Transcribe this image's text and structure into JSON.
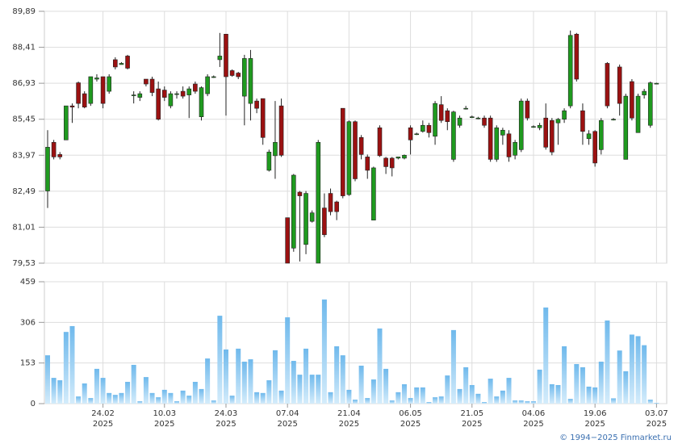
{
  "chart_data": [
    {
      "type": "candlestick",
      "up_color": "#1f9a1f",
      "down_color": "#9b1111",
      "grid": true,
      "ylim": [
        79.53,
        89.89
      ],
      "yticks": [
        {
          "value": 79.53,
          "label": "79,53"
        },
        {
          "value": 81.01,
          "label": "81,01"
        },
        {
          "value": 82.49,
          "label": "82,49"
        },
        {
          "value": 83.97,
          "label": "83,97"
        },
        {
          "value": 85.45,
          "label": "85,45"
        },
        {
          "value": 86.93,
          "label": "86,93"
        },
        {
          "value": 88.41,
          "label": "88,41"
        },
        {
          "value": 89.89,
          "label": "89,89"
        }
      ],
      "open": [
        82.5,
        84.5,
        84.0,
        84.6,
        86.0,
        86.95,
        86.5,
        86.1,
        87.1,
        87.2,
        86.6,
        87.9,
        87.7,
        88.05,
        86.45,
        86.35,
        87.1,
        87.1,
        86.7,
        86.65,
        86.0,
        86.5,
        86.6,
        86.45,
        86.9,
        85.55,
        86.5,
        87.2,
        87.9,
        88.95,
        87.45,
        87.35,
        86.4,
        86.1,
        86.2,
        86.3,
        83.35,
        83.95,
        86.0,
        81.4,
        80.15,
        82.45,
        80.3,
        81.25,
        79.53,
        81.8,
        82.4,
        82.05,
        85.9,
        82.35,
        85.35,
        84.7,
        83.9,
        81.3,
        85.1,
        83.85,
        83.85,
        83.85,
        83.85,
        85.1,
        84.85,
        84.95,
        85.2,
        84.75,
        86.05,
        85.8,
        83.8,
        85.2,
        85.9,
        85.55,
        85.5,
        85.5,
        85.5,
        83.8,
        84.8,
        84.85,
        83.97,
        84.2,
        86.2,
        85.15,
        85.1,
        85.5,
        85.4,
        85.3,
        85.45,
        86.0,
        88.95,
        85.8,
        84.65,
        84.95,
        84.2,
        87.75,
        85.45,
        87.6,
        83.8,
        87.0,
        84.9,
        86.45,
        85.2,
        86.93
      ],
      "high": [
        85.0,
        84.6,
        84.1,
        86.0,
        86.1,
        87.0,
        86.6,
        87.2,
        87.3,
        87.2,
        87.3,
        88.0,
        87.8,
        88.1,
        86.6,
        86.6,
        87.1,
        87.2,
        87.0,
        86.8,
        86.6,
        86.6,
        86.8,
        86.8,
        87.0,
        86.8,
        87.3,
        87.25,
        89.0,
        88.95,
        87.5,
        87.4,
        88.1,
        88.3,
        86.3,
        86.3,
        84.2,
        86.2,
        86.3,
        81.4,
        83.2,
        82.5,
        82.5,
        81.7,
        84.6,
        82.4,
        82.6,
        82.1,
        85.9,
        85.4,
        85.4,
        84.8,
        84.0,
        83.5,
        85.2,
        83.9,
        83.9,
        83.9,
        84.0,
        85.2,
        84.9,
        85.4,
        85.3,
        86.2,
        86.4,
        85.9,
        85.8,
        85.6,
        86.0,
        85.6,
        85.55,
        85.6,
        85.6,
        85.2,
        85.1,
        85.0,
        84.6,
        86.3,
        86.3,
        85.2,
        85.3,
        86.1,
        85.5,
        85.5,
        85.9,
        89.1,
        89.0,
        86.1,
        85.0,
        85.0,
        85.5,
        87.8,
        85.5,
        87.7,
        86.5,
        87.1,
        86.5,
        86.7,
        87.0,
        86.95
      ],
      "low": [
        81.8,
        83.8,
        83.8,
        84.6,
        85.3,
        85.9,
        85.9,
        86.0,
        87.0,
        85.9,
        86.5,
        87.5,
        87.7,
        87.5,
        86.1,
        86.2,
        86.8,
        86.4,
        85.4,
        86.2,
        85.9,
        86.3,
        86.3,
        85.5,
        86.5,
        85.4,
        86.4,
        87.15,
        87.6,
        85.6,
        87.2,
        87.1,
        85.2,
        85.4,
        85.7,
        84.4,
        83.3,
        83.0,
        83.9,
        79.53,
        80.0,
        79.6,
        79.9,
        81.2,
        79.53,
        80.6,
        81.5,
        81.3,
        82.2,
        82.3,
        82.9,
        83.8,
        83.0,
        81.3,
        83.9,
        83.2,
        83.1,
        83.8,
        83.8,
        84.0,
        84.8,
        84.9,
        84.7,
        84.4,
        85.3,
        85.0,
        83.7,
        85.1,
        85.85,
        85.5,
        85.45,
        85.1,
        83.7,
        83.7,
        84.4,
        83.7,
        83.8,
        84.1,
        85.4,
        85.1,
        85.0,
        84.2,
        83.97,
        84.4,
        85.3,
        85.9,
        87.0,
        84.4,
        84.4,
        83.5,
        84.0,
        85.9,
        85.4,
        85.6,
        83.8,
        85.4,
        84.9,
        86.3,
        85.1,
        86.9
      ],
      "close": [
        84.3,
        83.9,
        83.9,
        86.0,
        85.95,
        86.1,
        85.95,
        87.2,
        87.15,
        86.1,
        87.2,
        87.6,
        87.75,
        87.55,
        86.45,
        86.5,
        86.9,
        86.55,
        85.45,
        86.35,
        86.5,
        86.5,
        86.4,
        86.7,
        86.6,
        86.75,
        87.2,
        87.2,
        88.05,
        87.2,
        87.25,
        87.2,
        87.95,
        87.95,
        85.9,
        84.7,
        84.1,
        84.5,
        83.97,
        79.53,
        83.15,
        82.3,
        82.4,
        81.6,
        84.5,
        80.7,
        81.65,
        81.65,
        82.3,
        85.35,
        83.0,
        84.0,
        83.35,
        83.45,
        83.95,
        83.5,
        83.45,
        83.9,
        83.97,
        84.6,
        84.85,
        85.2,
        84.9,
        86.1,
        85.4,
        85.35,
        85.75,
        85.5,
        85.9,
        85.55,
        85.5,
        85.2,
        83.8,
        85.1,
        85.0,
        83.9,
        84.5,
        86.2,
        85.5,
        85.15,
        85.2,
        84.3,
        84.1,
        85.45,
        85.8,
        88.9,
        87.1,
        84.95,
        84.85,
        83.65,
        85.4,
        86.0,
        85.45,
        86.1,
        86.4,
        85.5,
        86.4,
        86.6,
        86.95,
        86.93
      ]
    },
    {
      "type": "bar",
      "color": "#8ccbf0",
      "grid": true,
      "ylim": [
        0,
        459
      ],
      "yticks": [
        0,
        153,
        306,
        459
      ],
      "xticks": [
        {
          "value": 9,
          "label": "24.02",
          "year": "2025"
        },
        {
          "value": 19,
          "label": "10.03",
          "year": "2025"
        },
        {
          "value": 29,
          "label": "24.03",
          "year": "2025"
        },
        {
          "value": 39,
          "label": "07.04",
          "year": "2025"
        },
        {
          "value": 49,
          "label": "21.04",
          "year": "2025"
        },
        {
          "value": 59,
          "label": "06.05",
          "year": "2025"
        },
        {
          "value": 69,
          "label": "21.05",
          "year": "2025"
        },
        {
          "value": 79,
          "label": "04.06",
          "year": "2025"
        },
        {
          "value": 89,
          "label": "19.06",
          "year": "2025"
        },
        {
          "value": 99,
          "label": "03.07",
          "year": "2025"
        }
      ],
      "values": [
        182,
        97,
        88,
        270,
        292,
        27,
        76,
        21,
        131,
        97,
        40,
        33,
        40,
        82,
        146,
        9,
        100,
        40,
        24,
        52,
        40,
        9,
        49,
        30,
        82,
        55,
        170,
        12,
        331,
        204,
        30,
        207,
        158,
        167,
        43,
        40,
        88,
        201,
        49,
        325,
        161,
        109,
        207,
        109,
        109,
        392,
        43,
        216,
        182,
        52,
        15,
        143,
        21,
        91,
        283,
        131,
        12,
        43,
        73,
        21,
        61,
        61,
        6,
        24,
        27,
        106,
        277,
        55,
        137,
        70,
        37,
        6,
        94,
        27,
        49,
        97,
        12,
        12,
        9,
        9,
        128,
        362,
        73,
        70,
        216,
        18,
        149,
        137,
        64,
        61,
        158,
        313,
        20,
        200,
        122,
        260,
        254,
        220,
        15,
        3
      ]
    }
  ],
  "footer": "© 1994−2025 Finmarket.ru"
}
